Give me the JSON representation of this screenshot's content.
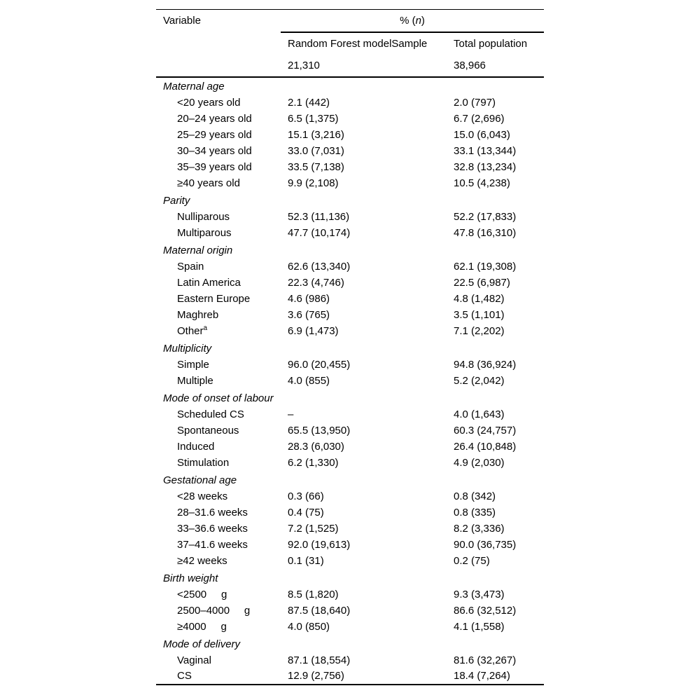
{
  "table": {
    "header": {
      "variable_label": "Variable",
      "pn_open": "% (",
      "pn_italic": "n",
      "pn_close": ")",
      "col2_label": "Random Forest modelSample",
      "col3_label": "Total population",
      "col2_count": "21,310",
      "col3_count": "38,966"
    },
    "sections": [
      {
        "title": "Maternal age",
        "rows": [
          {
            "label": "<20 years old",
            "sample": "2.1 (442)",
            "total": "2.0 (797)"
          },
          {
            "label": "20–24 years old",
            "sample": "6.5 (1,375)",
            "total": "6.7 (2,696)"
          },
          {
            "label": "25–29 years old",
            "sample": "15.1 (3,216)",
            "total": "15.0 (6,043)"
          },
          {
            "label": "30–34 years old",
            "sample": "33.0 (7,031)",
            "total": "33.1 (13,344)"
          },
          {
            "label": "35–39 years old",
            "sample": "33.5 (7,138)",
            "total": "32.8 (13,234)"
          },
          {
            "label": "≥40 years old",
            "sample": "9.9 (2,108)",
            "total": "10.5 (4,238)"
          }
        ]
      },
      {
        "title": "Parity",
        "rows": [
          {
            "label": "Nulliparous",
            "sample": "52.3 (11,136)",
            "total": "52.2 (17,833)"
          },
          {
            "label": "Multiparous",
            "sample": "47.7 (10,174)",
            "total": "47.8 (16,310)"
          }
        ]
      },
      {
        "title": "Maternal origin",
        "rows": [
          {
            "label": "Spain",
            "sample": "62.6 (13,340)",
            "total": "62.1 (19,308)"
          },
          {
            "label": "Latin America",
            "sample": "22.3 (4,746)",
            "total": "22.5 (6,987)"
          },
          {
            "label": "Eastern Europe",
            "sample": "4.6 (986)",
            "total": "4.8 (1,482)"
          },
          {
            "label": "Maghreb",
            "sample": "3.6 (765)",
            "total": "3.5 (1,101)"
          },
          {
            "label": "Other",
            "sup": "a",
            "sample": "6.9 (1,473)",
            "total": "7.1 (2,202)"
          }
        ]
      },
      {
        "title": "Multiplicity",
        "rows": [
          {
            "label": "Simple",
            "sample": "96.0 (20,455)",
            "total": "94.8 (36,924)"
          },
          {
            "label": "Multiple",
            "sample": "4.0 (855)",
            "total": "5.2 (2,042)"
          }
        ]
      },
      {
        "title": "Mode of onset of labour",
        "rows": [
          {
            "label": "Scheduled CS",
            "sample": "–",
            "total": "4.0 (1,643)"
          },
          {
            "label": "Spontaneous",
            "sample": "65.5 (13,950)",
            "total": "60.3 (24,757)"
          },
          {
            "label": "Induced",
            "sample": "28.3 (6,030)",
            "total": "26.4 (10,848)"
          },
          {
            "label": "Stimulation",
            "sample": "6.2 (1,330)",
            "total": "4.9 (2,030)"
          }
        ]
      },
      {
        "title": "Gestational age",
        "rows": [
          {
            "label": "<28 weeks",
            "sample": "0.3 (66)",
            "total": "0.8 (342)"
          },
          {
            "label": "28–31.6 weeks",
            "sample": "0.4 (75)",
            "total": "0.8 (335)"
          },
          {
            "label": "33–36.6 weeks",
            "sample": "7.2 (1,525)",
            "total": "8.2 (3,336)"
          },
          {
            "label": "37–41.6 weeks",
            "sample": "92.0 (19,613)",
            "total": "90.0 (36,735)"
          },
          {
            "label": "≥42 weeks",
            "sample": "0.1 (31)",
            "total": "0.2 (75)"
          }
        ]
      },
      {
        "title": "Birth weight",
        "rows": [
          {
            "label": "<2500     g",
            "sample": "8.5 (1,820)",
            "total": "9.3 (3,473)"
          },
          {
            "label": "2500–4000     g",
            "sample": "87.5 (18,640)",
            "total": "86.6 (32,512)"
          },
          {
            "label": "≥4000     g",
            "sample": "4.0 (850)",
            "total": "4.1 (1,558)"
          }
        ]
      },
      {
        "title": "Mode of delivery",
        "rows": [
          {
            "label": "Vaginal",
            "sample": "87.1 (18,554)",
            "total": "81.6 (32,267)"
          },
          {
            "label": "CS",
            "sample": "12.9 (2,756)",
            "total": "18.4 (7,264)"
          }
        ]
      }
    ]
  }
}
